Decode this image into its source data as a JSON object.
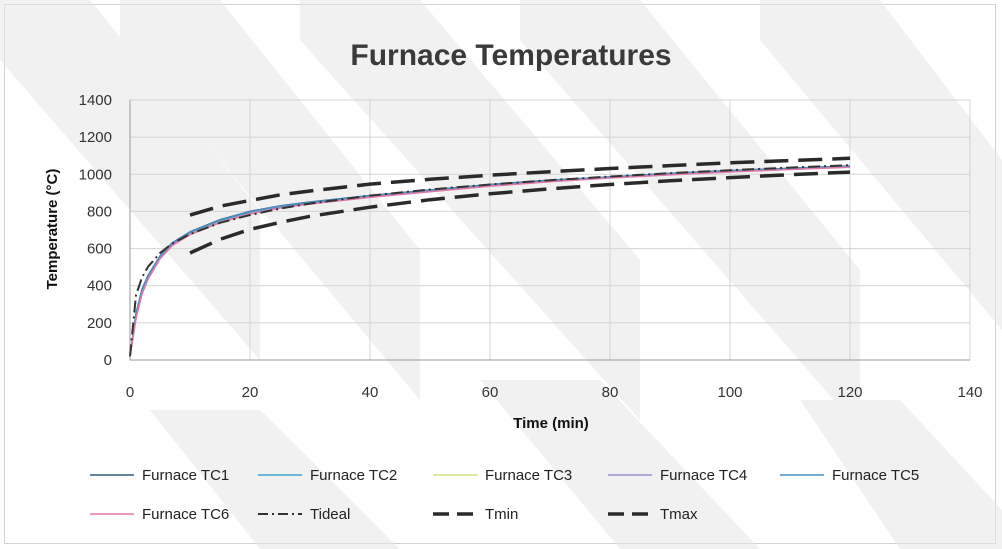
{
  "chart_data": {
    "type": "line",
    "title": "Furnace Temperatures",
    "xlabel": "Time (min)",
    "ylabel": "Temperature (°C)",
    "xlim": [
      0,
      140
    ],
    "ylim": [
      0,
      1400
    ],
    "xticks": [
      0,
      20,
      40,
      60,
      80,
      100,
      120,
      140
    ],
    "yticks": [
      0,
      200,
      400,
      600,
      800,
      1000,
      1200,
      1400
    ],
    "grid": true,
    "legend_position": "bottom",
    "series": [
      {
        "name": "Furnace TC1",
        "color": "#2e5e86",
        "dash": "solid",
        "x": [
          0,
          1,
          2,
          3,
          5,
          7,
          10,
          15,
          20,
          25,
          30,
          40,
          50,
          60,
          70,
          80,
          90,
          100,
          110,
          120
        ],
        "y": [
          20,
          250,
          380,
          455,
          560,
          630,
          690,
          755,
          800,
          830,
          850,
          885,
          915,
          945,
          968,
          985,
          1005,
          1020,
          1032,
          1045
        ]
      },
      {
        "name": "Furnace TC2",
        "color": "#3aa6cf",
        "dash": "solid",
        "x": [
          0,
          1,
          2,
          3,
          5,
          7,
          10,
          15,
          20,
          25,
          30,
          40,
          50,
          60,
          70,
          80,
          90,
          100,
          110,
          120
        ],
        "y": [
          20,
          240,
          370,
          450,
          555,
          625,
          685,
          750,
          795,
          825,
          848,
          882,
          912,
          942,
          965,
          985,
          1002,
          1018,
          1030,
          1042
        ]
      },
      {
        "name": "Furnace TC3",
        "color": "#d9e07a",
        "dash": "solid",
        "x": [
          0,
          1,
          2,
          3,
          5,
          7,
          10,
          15,
          20,
          25,
          30,
          40,
          50,
          60,
          70,
          80,
          90,
          100,
          110,
          120
        ],
        "y": [
          20,
          235,
          365,
          445,
          550,
          620,
          680,
          745,
          790,
          822,
          845,
          880,
          910,
          940,
          963,
          983,
          1000,
          1016,
          1028,
          1040
        ]
      },
      {
        "name": "Furnace TC4",
        "color": "#9a8fd0",
        "dash": "solid",
        "x": [
          0,
          1,
          2,
          3,
          5,
          7,
          10,
          15,
          20,
          25,
          30,
          40,
          50,
          60,
          70,
          80,
          90,
          100,
          110,
          120
        ],
        "y": [
          20,
          230,
          360,
          440,
          548,
          618,
          678,
          742,
          788,
          820,
          842,
          878,
          908,
          938,
          962,
          982,
          998,
          1015,
          1027,
          1040
        ]
      },
      {
        "name": "Furnace TC5",
        "color": "#4a90c4",
        "dash": "solid",
        "x": [
          0,
          1,
          2,
          3,
          5,
          7,
          10,
          15,
          20,
          25,
          30,
          40,
          50,
          60,
          70,
          80,
          90,
          100,
          110,
          120
        ],
        "y": [
          20,
          245,
          375,
          452,
          558,
          628,
          688,
          752,
          798,
          828,
          848,
          884,
          914,
          944,
          966,
          986,
          1004,
          1019,
          1031,
          1044
        ]
      },
      {
        "name": "Furnace TC6",
        "color": "#e07aa8",
        "dash": "solid",
        "x": [
          0,
          1,
          2,
          3,
          5,
          7,
          10,
          15,
          20,
          25,
          30,
          40,
          50,
          60,
          70,
          80,
          90,
          100,
          110,
          120
        ],
        "y": [
          20,
          225,
          355,
          435,
          545,
          615,
          675,
          740,
          786,
          818,
          840,
          876,
          906,
          936,
          960,
          980,
          997,
          1013,
          1026,
          1038
        ]
      },
      {
        "name": "Tideal",
        "color": "#333333",
        "dash": "dashdot",
        "x": [
          0,
          1,
          2,
          3,
          5,
          7,
          10,
          15,
          20,
          25,
          30,
          40,
          50,
          60,
          70,
          80,
          90,
          100,
          110,
          120
        ],
        "y": [
          20,
          349,
          445,
          502,
          576,
          626,
          678,
          739,
          781,
          815,
          842,
          885,
          918,
          945,
          968,
          988,
          1006,
          1022,
          1036,
          1049
        ]
      },
      {
        "name": "Tmin",
        "color": "#2a2a2a",
        "dash": "longdash",
        "x": [
          10,
          15,
          20,
          25,
          30,
          40,
          50,
          60,
          70,
          80,
          90,
          100,
          110,
          120
        ],
        "y": [
          576,
          650,
          703,
          741,
          774,
          823,
          863,
          895,
          922,
          945,
          965,
          982,
          998,
          1012
        ]
      },
      {
        "name": "Tmax",
        "color": "#2a2a2a",
        "dash": "longdash",
        "x": [
          10,
          15,
          20,
          25,
          30,
          40,
          50,
          60,
          70,
          80,
          90,
          100,
          110,
          120
        ],
        "y": [
          780,
          828,
          859,
          889,
          910,
          947,
          973,
          995,
          1014,
          1031,
          1047,
          1062,
          1074,
          1086
        ]
      }
    ]
  }
}
